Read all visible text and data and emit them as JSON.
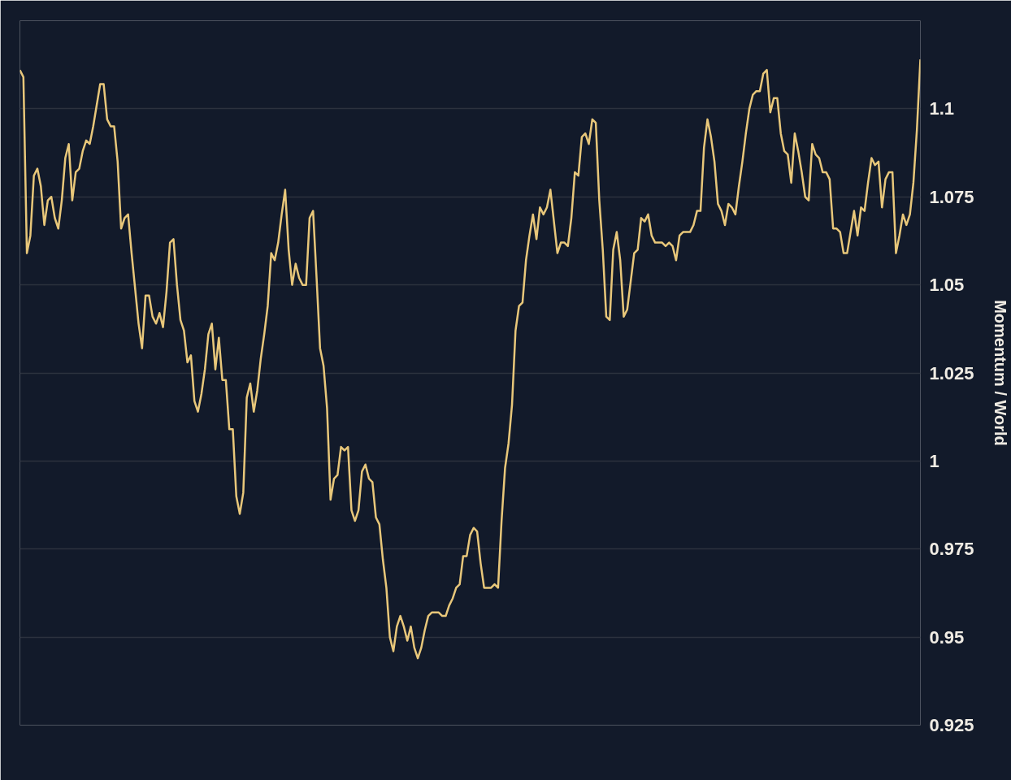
{
  "chart_data": {
    "type": "line",
    "ylabel": "Momentum / World",
    "color": "#e8c77a",
    "ylim": [
      0.925,
      1.125
    ],
    "yticks": [
      0.925,
      0.95,
      0.975,
      1,
      1.025,
      1.05,
      1.075,
      1.1,
      {
        "value": 1.125,
        "label": null
      }
    ],
    "grid": "y",
    "tick_labels": "y",
    "marker": "none",
    "line_style": "solid",
    "categories": [
      null,
      null,
      null,
      null,
      null,
      null,
      null,
      null,
      null,
      null,
      null,
      null,
      null,
      null,
      null,
      null,
      null,
      null,
      null,
      null,
      null,
      null,
      null,
      null,
      null,
      null,
      null,
      null,
      null,
      null,
      null,
      null,
      null,
      null,
      null,
      null,
      null,
      null,
      null,
      null,
      null,
      null,
      null,
      null,
      null,
      null,
      null,
      null,
      null,
      null,
      null,
      null,
      null,
      null,
      null,
      null,
      null,
      null,
      null,
      null,
      null,
      null,
      null,
      null,
      null,
      null,
      null,
      null,
      null,
      null,
      null,
      null,
      null,
      null,
      null,
      null,
      null,
      null,
      null,
      null,
      null,
      null,
      null,
      null,
      null,
      null,
      null,
      null,
      null,
      null,
      null,
      null,
      null,
      null,
      null,
      null,
      null,
      null,
      null,
      null,
      null,
      null,
      null,
      null,
      null,
      null,
      null,
      null,
      null,
      null,
      null,
      null,
      null,
      null,
      null,
      null,
      null,
      null,
      null,
      null,
      null,
      null,
      null,
      null,
      null,
      null,
      null,
      null,
      null,
      null,
      null,
      null,
      null,
      null,
      null,
      null,
      null,
      null,
      null,
      null,
      null,
      null,
      null,
      null,
      null,
      null,
      null,
      null,
      null,
      null,
      null,
      null,
      null,
      null,
      null,
      null,
      null,
      null,
      null,
      null,
      null,
      null,
      null,
      null,
      null,
      null,
      null,
      null,
      null,
      null,
      null,
      null,
      null,
      null,
      null,
      null,
      null,
      null,
      null,
      null,
      null,
      null,
      null,
      null,
      null,
      null,
      null,
      null,
      null,
      null,
      null,
      null,
      null,
      null,
      null,
      null,
      null,
      null,
      null,
      null,
      null,
      null,
      null,
      null,
      null,
      null,
      null,
      null,
      null,
      null,
      null,
      null,
      null,
      null,
      null,
      null,
      null,
      null,
      null,
      null,
      null,
      null,
      null,
      null,
      null,
      null,
      null,
      null,
      null,
      null,
      null,
      null,
      null,
      null,
      null,
      null,
      null,
      null,
      null,
      null,
      null,
      null,
      null,
      null,
      null,
      null,
      null,
      null,
      null,
      null,
      null,
      null,
      null,
      null,
      null,
      null,
      null,
      null,
      null
    ],
    "values": [
      1.111,
      1.109,
      1.059,
      1.064,
      1.081,
      1.083,
      1.078,
      1.067,
      1.074,
      1.075,
      1.069,
      1.066,
      1.074,
      1.086,
      1.09,
      1.074,
      1.082,
      1.083,
      1.088,
      1.091,
      1.09,
      1.095,
      1.101,
      1.107,
      1.107,
      1.097,
      1.095,
      1.095,
      1.085,
      1.066,
      1.069,
      1.07,
      1.059,
      1.049,
      1.039,
      1.032,
      1.047,
      1.047,
      1.041,
      1.039,
      1.042,
      1.038,
      1.048,
      1.062,
      1.063,
      1.05,
      1.04,
      1.037,
      1.028,
      1.03,
      1.017,
      1.014,
      1.019,
      1.026,
      1.036,
      1.039,
      1.026,
      1.035,
      1.023,
      1.023,
      1.009,
      1.009,
      0.99,
      0.985,
      0.991,
      1.018,
      1.022,
      1.014,
      1.02,
      1.029,
      1.036,
      1.044,
      1.059,
      1.057,
      1.062,
      1.07,
      1.077,
      1.06,
      1.05,
      1.056,
      1.052,
      1.05,
      1.05,
      1.069,
      1.071,
      1.052,
      1.032,
      1.027,
      1.015,
      0.989,
      0.995,
      0.996,
      1.004,
      1.003,
      1.004,
      0.986,
      0.983,
      0.986,
      0.997,
      0.999,
      0.995,
      0.994,
      0.984,
      0.982,
      0.972,
      0.964,
      0.95,
      0.946,
      0.953,
      0.956,
      0.953,
      0.949,
      0.953,
      0.947,
      0.944,
      0.947,
      0.952,
      0.956,
      0.957,
      0.957,
      0.957,
      0.956,
      0.956,
      0.959,
      0.961,
      0.964,
      0.965,
      0.973,
      0.973,
      0.979,
      0.981,
      0.98,
      0.971,
      0.964,
      0.964,
      0.964,
      0.965,
      0.964,
      0.983,
      0.998,
      1.005,
      1.016,
      1.037,
      1.044,
      1.045,
      1.057,
      1.064,
      1.07,
      1.063,
      1.072,
      1.07,
      1.072,
      1.077,
      1.068,
      1.059,
      1.062,
      1.062,
      1.061,
      1.069,
      1.082,
      1.081,
      1.092,
      1.093,
      1.09,
      1.097,
      1.096,
      1.074,
      1.06,
      1.041,
      1.04,
      1.06,
      1.065,
      1.057,
      1.041,
      1.043,
      1.051,
      1.059,
      1.06,
      1.069,
      1.068,
      1.07,
      1.064,
      1.062,
      1.062,
      1.062,
      1.061,
      1.062,
      1.061,
      1.057,
      1.064,
      1.065,
      1.065,
      1.065,
      1.067,
      1.071,
      1.071,
      1.089,
      1.097,
      1.092,
      1.085,
      1.073,
      1.071,
      1.067,
      1.073,
      1.072,
      1.07,
      1.078,
      1.085,
      1.093,
      1.1,
      1.104,
      1.105,
      1.105,
      1.11,
      1.111,
      1.099,
      1.103,
      1.103,
      1.093,
      1.088,
      1.087,
      1.079,
      1.093,
      1.088,
      1.082,
      1.075,
      1.074,
      1.09,
      1.087,
      1.086,
      1.082,
      1.082,
      1.08,
      1.066,
      1.066,
      1.065,
      1.059,
      1.059,
      1.065,
      1.071,
      1.064,
      1.072,
      1.071,
      1.079,
      1.086,
      1.084,
      1.085,
      1.072,
      1.08,
      1.082,
      1.082,
      1.059,
      1.064,
      1.07,
      1.067,
      1.07,
      1.079,
      1.094,
      1.114
    ]
  }
}
